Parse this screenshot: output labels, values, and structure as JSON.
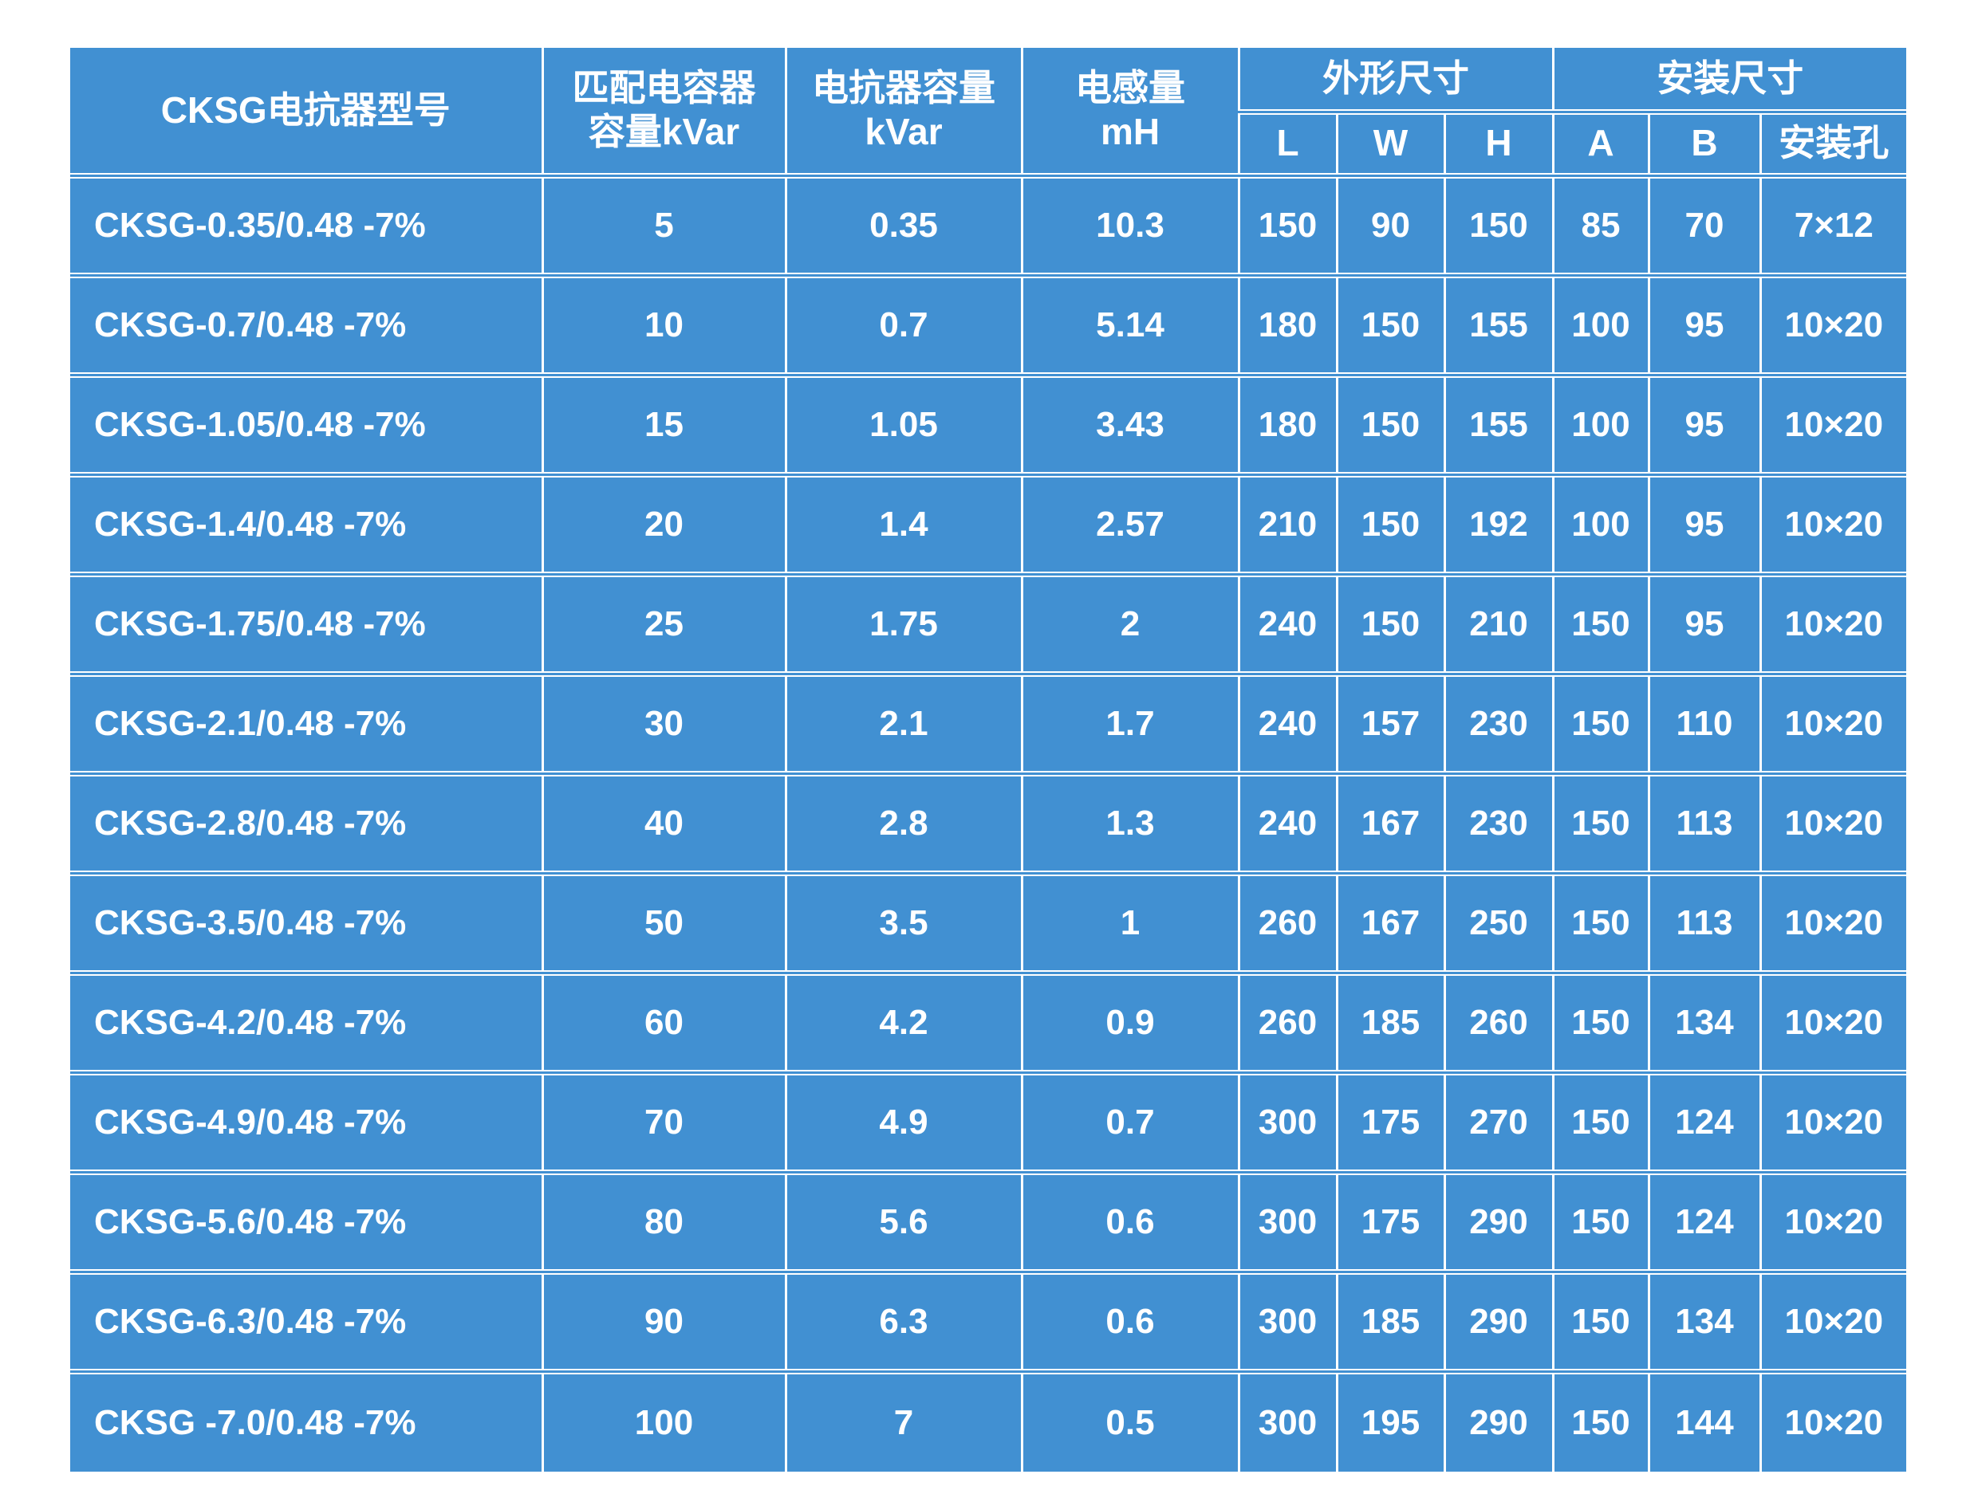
{
  "table": {
    "header": {
      "col_model": "CKSG电抗器型号",
      "col_capacitor_line1": "匹配电容器",
      "col_capacitor_line2": "容量kVar",
      "col_reactor_line1": "电抗器容量",
      "col_reactor_line2": "kVar",
      "col_inductance_line1": "电感量",
      "col_inductance_line2": "mH",
      "group_outline": "外形尺寸",
      "group_mounting": "安装尺寸",
      "sub": [
        "L",
        "W",
        "H",
        "A",
        "B",
        "安装孔"
      ]
    },
    "rows": [
      [
        "CKSG-0.35/0.48 -7%",
        "5",
        "0.35",
        "10.3",
        "150",
        "90",
        "150",
        "85",
        "70",
        "7×12"
      ],
      [
        "CKSG-0.7/0.48 -7%",
        "10",
        "0.7",
        "5.14",
        "180",
        "150",
        "155",
        "100",
        "95",
        "10×20"
      ],
      [
        "CKSG-1.05/0.48 -7%",
        "15",
        "1.05",
        "3.43",
        "180",
        "150",
        "155",
        "100",
        "95",
        "10×20"
      ],
      [
        "CKSG-1.4/0.48 -7%",
        "20",
        "1.4",
        "2.57",
        "210",
        "150",
        "192",
        "100",
        "95",
        "10×20"
      ],
      [
        "CKSG-1.75/0.48 -7%",
        "25",
        "1.75",
        "2",
        "240",
        "150",
        "210",
        "150",
        "95",
        "10×20"
      ],
      [
        "CKSG-2.1/0.48 -7%",
        "30",
        "2.1",
        "1.7",
        "240",
        "157",
        "230",
        "150",
        "110",
        "10×20"
      ],
      [
        "CKSG-2.8/0.48 -7%",
        "40",
        "2.8",
        "1.3",
        "240",
        "167",
        "230",
        "150",
        "113",
        "10×20"
      ],
      [
        "CKSG-3.5/0.48 -7%",
        "50",
        "3.5",
        "1",
        "260",
        "167",
        "250",
        "150",
        "113",
        "10×20"
      ],
      [
        "CKSG-4.2/0.48 -7%",
        "60",
        "4.2",
        "0.9",
        "260",
        "185",
        "260",
        "150",
        "134",
        "10×20"
      ],
      [
        "CKSG-4.9/0.48 -7%",
        "70",
        "4.9",
        "0.7",
        "300",
        "175",
        "270",
        "150",
        "124",
        "10×20"
      ],
      [
        "CKSG-5.6/0.48 -7%",
        "80",
        "5.6",
        "0.6",
        "300",
        "175",
        "290",
        "150",
        "124",
        "10×20"
      ],
      [
        "CKSG-6.3/0.48 -7%",
        "90",
        "6.3",
        "0.6",
        "300",
        "185",
        "290",
        "150",
        "134",
        "10×20"
      ],
      [
        "CKSG -7.0/0.48 -7%",
        "100",
        "7",
        "0.5",
        "300",
        "195",
        "290",
        "150",
        "144",
        "10×20"
      ]
    ]
  },
  "colors": {
    "table_blue": "#4190d2",
    "grid_white": "#ffffff",
    "page_bg": "#ffffff"
  }
}
